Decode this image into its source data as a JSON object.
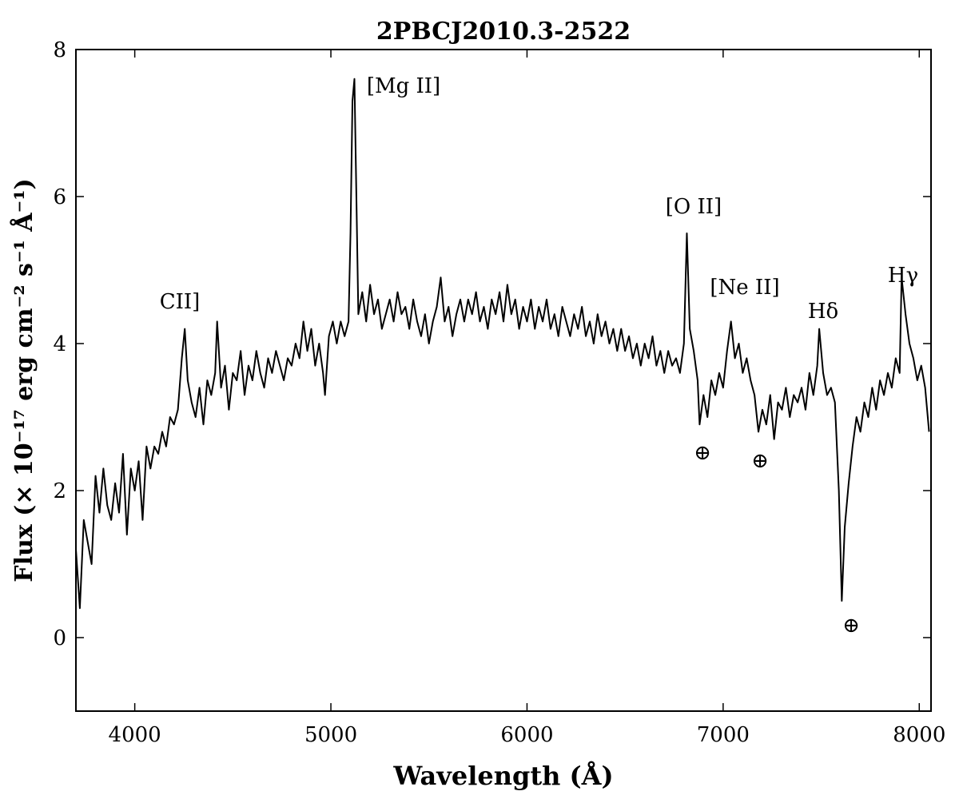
{
  "chart_data": {
    "type": "line",
    "title": "2PBCJ2010.3-2522",
    "x_label": "Wavelength (Å)",
    "y_label": "Flux (× 10⁻¹⁷ erg cm⁻² s⁻¹ Å⁻¹)",
    "xlim": [
      3700,
      8060
    ],
    "ylim": [
      -1,
      8
    ],
    "xticks": [
      4000,
      5000,
      6000,
      7000,
      8000
    ],
    "yticks": [
      0,
      2,
      4,
      6,
      8
    ],
    "grid": false,
    "color": "#000000",
    "annotations": [
      "CII]",
      "[Mg II]",
      "[O II]",
      "[Ne II]",
      "Hδ",
      "Hγ",
      "⊕",
      "⊕",
      "⊕"
    ],
    "x": [
      3700,
      3720,
      3740,
      3760,
      3780,
      3800,
      3820,
      3840,
      3860,
      3880,
      3900,
      3920,
      3940,
      3960,
      3980,
      4000,
      4020,
      4040,
      4060,
      4080,
      4100,
      4120,
      4140,
      4160,
      4180,
      4200,
      4220,
      4240,
      4255,
      4270,
      4290,
      4310,
      4330,
      4350,
      4370,
      4390,
      4410,
      4420,
      4440,
      4460,
      4480,
      4500,
      4520,
      4540,
      4560,
      4580,
      4600,
      4620,
      4640,
      4660,
      4680,
      4700,
      4720,
      4740,
      4760,
      4780,
      4800,
      4820,
      4840,
      4860,
      4880,
      4900,
      4920,
      4940,
      4960,
      4970,
      4990,
      5010,
      5030,
      5050,
      5070,
      5090,
      5100,
      5110,
      5120,
      5130,
      5140,
      5160,
      5180,
      5200,
      5220,
      5240,
      5260,
      5280,
      5300,
      5320,
      5340,
      5360,
      5380,
      5400,
      5420,
      5440,
      5460,
      5480,
      5500,
      5520,
      5540,
      5560,
      5580,
      5600,
      5620,
      5640,
      5660,
      5680,
      5700,
      5720,
      5740,
      5760,
      5780,
      5800,
      5820,
      5840,
      5860,
      5880,
      5900,
      5920,
      5940,
      5960,
      5980,
      6000,
      6020,
      6040,
      6060,
      6080,
      6100,
      6120,
      6140,
      6160,
      6180,
      6200,
      6220,
      6240,
      6260,
      6280,
      6300,
      6320,
      6340,
      6360,
      6380,
      6400,
      6420,
      6440,
      6460,
      6480,
      6500,
      6520,
      6540,
      6560,
      6580,
      6600,
      6620,
      6640,
      6660,
      6680,
      6700,
      6720,
      6740,
      6760,
      6780,
      6800,
      6815,
      6830,
      6850,
      6870,
      6880,
      6900,
      6920,
      6940,
      6960,
      6980,
      7000,
      7020,
      7040,
      7060,
      7080,
      7100,
      7120,
      7140,
      7160,
      7180,
      7200,
      7220,
      7240,
      7260,
      7280,
      7300,
      7320,
      7340,
      7360,
      7380,
      7400,
      7420,
      7440,
      7460,
      7480,
      7490,
      7510,
      7530,
      7550,
      7570,
      7590,
      7605,
      7620,
      7640,
      7660,
      7680,
      7700,
      7720,
      7740,
      7760,
      7780,
      7800,
      7820,
      7840,
      7860,
      7880,
      7900,
      7910,
      7930,
      7950,
      7970,
      7990,
      8010,
      8030,
      8050
    ],
    "values": [
      1.2,
      0.4,
      1.6,
      1.3,
      1.0,
      2.2,
      1.7,
      2.3,
      1.8,
      1.6,
      2.1,
      1.7,
      2.5,
      1.4,
      2.3,
      2.0,
      2.4,
      1.6,
      2.6,
      2.3,
      2.6,
      2.5,
      2.8,
      2.6,
      3.0,
      2.9,
      3.1,
      3.8,
      4.2,
      3.5,
      3.2,
      3.0,
      3.4,
      2.9,
      3.5,
      3.3,
      3.6,
      4.3,
      3.4,
      3.7,
      3.1,
      3.6,
      3.5,
      3.9,
      3.3,
      3.7,
      3.5,
      3.9,
      3.6,
      3.4,
      3.8,
      3.6,
      3.9,
      3.7,
      3.5,
      3.8,
      3.7,
      4.0,
      3.8,
      4.3,
      3.9,
      4.2,
      3.7,
      4.0,
      3.6,
      3.3,
      4.1,
      4.3,
      4.0,
      4.3,
      4.1,
      4.3,
      5.5,
      7.3,
      7.6,
      6.0,
      4.4,
      4.7,
      4.3,
      4.8,
      4.4,
      4.6,
      4.2,
      4.4,
      4.6,
      4.3,
      4.7,
      4.4,
      4.5,
      4.2,
      4.6,
      4.3,
      4.1,
      4.4,
      4.0,
      4.3,
      4.5,
      4.9,
      4.3,
      4.5,
      4.1,
      4.4,
      4.6,
      4.3,
      4.6,
      4.4,
      4.7,
      4.3,
      4.5,
      4.2,
      4.6,
      4.4,
      4.7,
      4.3,
      4.8,
      4.4,
      4.6,
      4.2,
      4.5,
      4.3,
      4.6,
      4.2,
      4.5,
      4.3,
      4.6,
      4.2,
      4.4,
      4.1,
      4.5,
      4.3,
      4.1,
      4.4,
      4.2,
      4.5,
      4.1,
      4.3,
      4.0,
      4.4,
      4.1,
      4.3,
      4.0,
      4.2,
      3.9,
      4.2,
      3.9,
      4.1,
      3.8,
      4.0,
      3.7,
      4.0,
      3.8,
      4.1,
      3.7,
      3.9,
      3.6,
      3.9,
      3.7,
      3.8,
      3.6,
      4.0,
      5.5,
      4.2,
      3.9,
      3.5,
      2.9,
      3.3,
      3.0,
      3.5,
      3.3,
      3.6,
      3.4,
      3.9,
      4.3,
      3.8,
      4.0,
      3.6,
      3.8,
      3.5,
      3.3,
      2.8,
      3.1,
      2.9,
      3.3,
      2.7,
      3.2,
      3.1,
      3.4,
      3.0,
      3.3,
      3.2,
      3.4,
      3.1,
      3.6,
      3.3,
      3.7,
      4.2,
      3.6,
      3.3,
      3.4,
      3.2,
      2.0,
      0.5,
      1.5,
      2.1,
      2.6,
      3.0,
      2.8,
      3.2,
      3.0,
      3.4,
      3.1,
      3.5,
      3.3,
      3.6,
      3.4,
      3.8,
      3.6,
      4.9,
      4.4,
      4.0,
      3.8,
      3.5,
      3.7,
      3.4,
      2.8
    ]
  }
}
